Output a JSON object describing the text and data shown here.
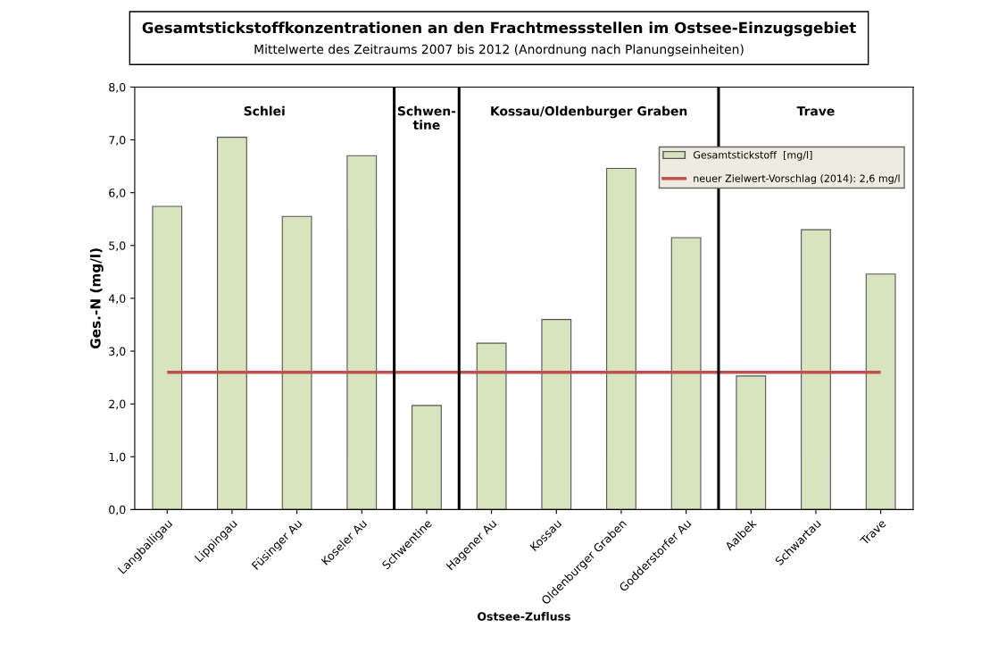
{
  "chart_data": {
    "type": "bar",
    "title": "Gesamtstickstoffkonzentrationen an den Frachtmessstellen im Ostsee-Einzugsgebiet",
    "subtitle": "Mittelwerte des Zeitraums 2007 bis 2012 (Anordnung nach Planungseinheiten)",
    "xlabel": "Ostsee-Zufluss",
    "ylabel": "Ges.-N (mg/l)",
    "categories": [
      "Langballigau",
      "Lippingau",
      "Füsinger Au",
      "Koseler Au",
      "Schwentine",
      "Hagener Au",
      "Kossau",
      "Oldenburger Graben",
      "Godderstorfer Au",
      "Aalbek",
      "Schwartau",
      "Trave"
    ],
    "series": [
      {
        "name": "Gesamtstickstoff  [mg/l]",
        "color": "#d7e4bd",
        "values": [
          5.74,
          7.05,
          5.55,
          6.7,
          1.97,
          3.15,
          3.6,
          6.46,
          5.15,
          2.53,
          5.3,
          4.46
        ]
      }
    ],
    "ylim": [
      0,
      8
    ],
    "yticks": [
      {
        "value": 0,
        "label": "0,0"
      },
      {
        "value": 1,
        "label": "1,0"
      },
      {
        "value": 2,
        "label": "2,0"
      },
      {
        "value": 3,
        "label": "3,0"
      },
      {
        "value": 4,
        "label": "4,0"
      },
      {
        "value": 5,
        "label": "5,0"
      },
      {
        "value": 6,
        "label": "6,0"
      },
      {
        "value": 7,
        "label": "7,0"
      },
      {
        "value": 8,
        "label": "8,0"
      }
    ],
    "ref_lines": [
      {
        "axis": "y",
        "value": 2.6,
        "label": "neuer Zielwert-Vorschlag (2014): 2,6 mg/l",
        "color": "#c0504d"
      }
    ],
    "annotations": [
      "Schlei",
      "Schwen-\ntine",
      "Kossau/Oldenburger Graben",
      "Trave"
    ],
    "grid": false,
    "legend": "top right"
  }
}
